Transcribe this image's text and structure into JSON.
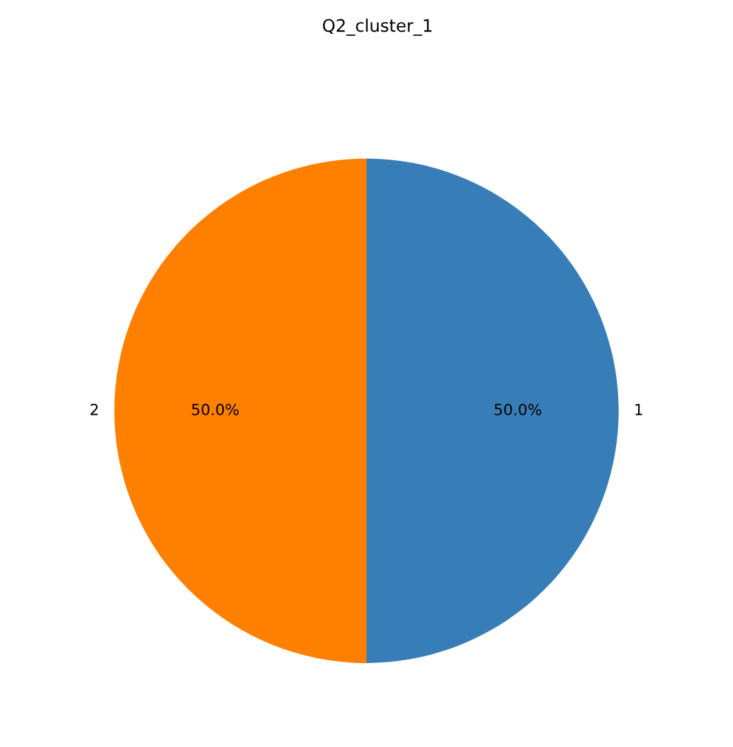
{
  "chart_data": {
    "type": "pie",
    "title": "Q2_cluster_1",
    "categories": [
      "1",
      "2"
    ],
    "values": [
      50,
      50
    ],
    "colors": [
      "#377eb8",
      "#ff7f00"
    ],
    "value_labels": [
      "50.0%",
      "50.0%"
    ]
  }
}
